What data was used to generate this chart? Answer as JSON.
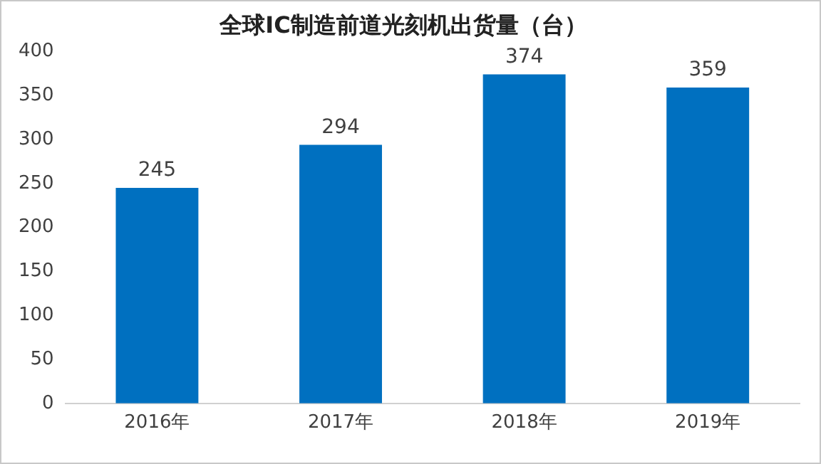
{
  "chart_data": {
    "type": "bar",
    "title": "全球IC制造前道光刻机出货量（台）",
    "categories": [
      "2016年",
      "2017年",
      "2018年",
      "2019年"
    ],
    "values": [
      245,
      294,
      374,
      359
    ],
    "color": "#0070c0",
    "ylim": [
      0,
      400
    ],
    "yticks": [
      0,
      50,
      100,
      150,
      200,
      250,
      300,
      350,
      400
    ],
    "grid": false,
    "data_labels": true
  }
}
